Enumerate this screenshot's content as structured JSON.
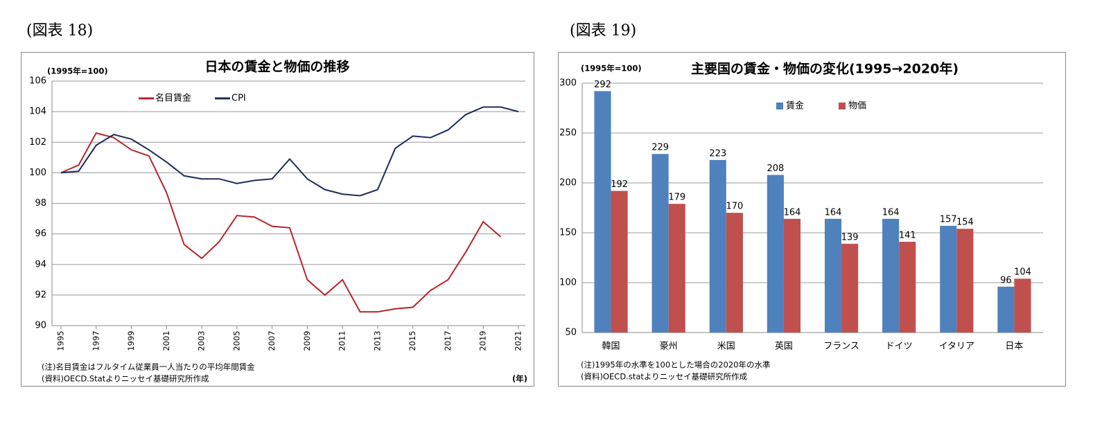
{
  "figure_labels": [
    "(図表 18)",
    "(図表 19)"
  ],
  "chart_data": [
    {
      "type": "line",
      "title": "日本の賃金と物価の推移",
      "unit_label": "(1995年=100)",
      "x_unit_label": "(年)",
      "notes": [
        "(注)名目賃金はフルタイム従業員一人当たりの平均年間賃金",
        "(資料)OECD.Statよりニッセイ基礎研究所作成"
      ],
      "x": [
        1995,
        1996,
        1997,
        1998,
        1999,
        2000,
        2001,
        2002,
        2003,
        2004,
        2005,
        2006,
        2007,
        2008,
        2009,
        2010,
        2011,
        2012,
        2013,
        2014,
        2015,
        2016,
        2017,
        2018,
        2019,
        2020,
        2021
      ],
      "series": [
        {
          "name": "名目賃金",
          "color": "#b8232a",
          "values": [
            100,
            100.5,
            102.6,
            102.3,
            101.5,
            101.1,
            98.7,
            95.3,
            94.4,
            95.5,
            97.2,
            97.1,
            96.5,
            96.4,
            93.0,
            92.0,
            93.0,
            90.9,
            90.9,
            91.1,
            91.2,
            92.3,
            93.0,
            94.8,
            96.8,
            95.8,
            null
          ]
        },
        {
          "name": "CPI",
          "color": "#1c2b5a",
          "values": [
            100,
            100.1,
            101.8,
            102.5,
            102.2,
            101.5,
            100.7,
            99.8,
            99.6,
            99.6,
            99.3,
            99.5,
            99.6,
            100.9,
            99.6,
            98.9,
            98.6,
            98.5,
            98.9,
            101.6,
            102.4,
            102.3,
            102.8,
            103.8,
            104.3,
            104.3,
            104.0
          ]
        }
      ],
      "xlim": [
        1995,
        2021
      ],
      "xticks": [
        1995,
        1997,
        1999,
        2001,
        2003,
        2005,
        2007,
        2009,
        2011,
        2013,
        2015,
        2017,
        2019,
        2021
      ],
      "ylim": [
        90,
        106
      ],
      "yticks": [
        90,
        92,
        94,
        96,
        98,
        100,
        102,
        104,
        106
      ],
      "grid": true
    },
    {
      "type": "bar",
      "title": "主要国の賃金・物価の変化(1995→2020年)",
      "unit_label": "(1995年=100)",
      "notes": [
        "(注)1995年の水準を100とした場合の2020年の水準",
        "(資料)OECD.statよりニッセイ基礎研究所作成"
      ],
      "categories": [
        "韓国",
        "豪州",
        "米国",
        "英国",
        "フランス",
        "ドイツ",
        "イタリア",
        "日本"
      ],
      "series": [
        {
          "name": "賃金",
          "color": "#4f81bd",
          "values": [
            292,
            229,
            223,
            208,
            164,
            164,
            157,
            96
          ]
        },
        {
          "name": "物価",
          "color": "#c0504d",
          "values": [
            192,
            179,
            170,
            164,
            139,
            141,
            154,
            104
          ]
        }
      ],
      "ylim": [
        50,
        300
      ],
      "yticks": [
        50,
        100,
        150,
        200,
        250,
        300
      ],
      "grid": true
    }
  ]
}
